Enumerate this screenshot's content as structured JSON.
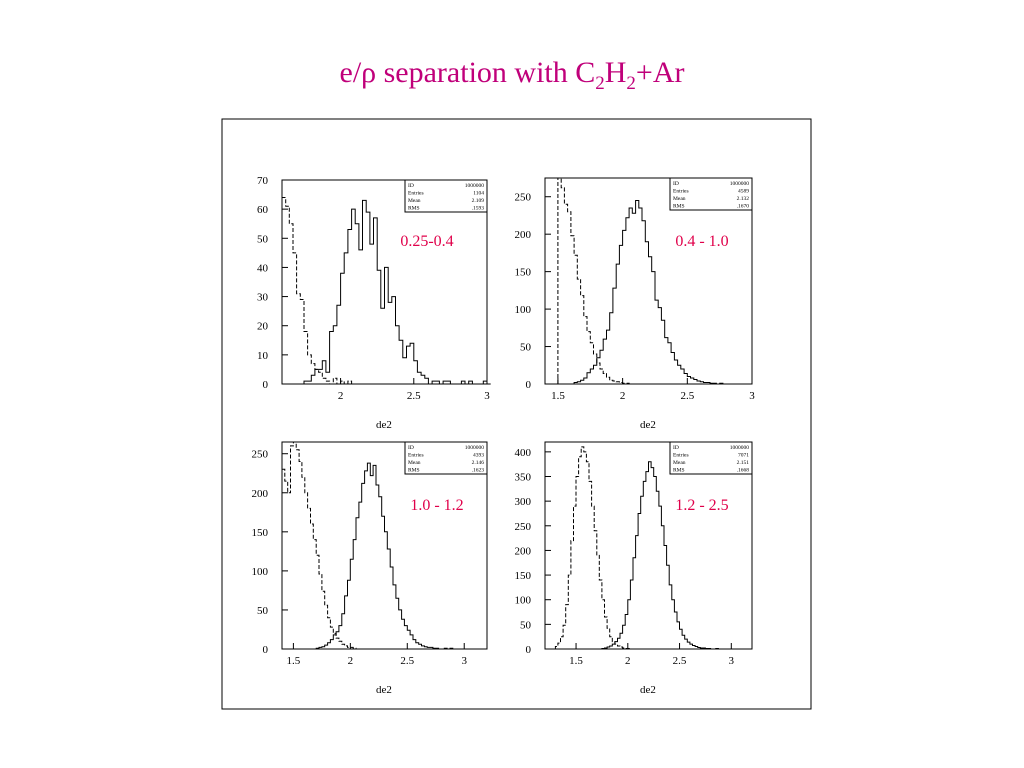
{
  "title": {
    "prefix": "e/ρ separation with C",
    "sub1": "2",
    "mid": "H",
    "sub2": "2",
    "suffix": "+Ar"
  },
  "colors": {
    "title": "#c0007a",
    "range_label": "#e0004a",
    "axes": "#000000"
  },
  "chart_data": [
    {
      "type": "histogram",
      "range_label": "0.25-0.4",
      "xlabel": "de2",
      "xlim": [
        1.6,
        3.0
      ],
      "ylim": [
        0,
        70
      ],
      "xticks": [
        2,
        2.5,
        3
      ],
      "xtick_labels": [
        "2",
        "2.5",
        "3"
      ],
      "yticks": [
        0,
        10,
        20,
        30,
        40,
        50,
        60,
        70
      ],
      "stats": [
        [
          "ID",
          "1000000"
        ],
        [
          "Entries",
          "1104"
        ],
        [
          "Mean",
          "2.109"
        ],
        [
          "RMS",
          ".1593"
        ]
      ],
      "binwidth": 0.025,
      "series": [
        {
          "style": "solid",
          "x0": 1.625,
          "values": [
            0,
            0,
            0,
            0,
            0,
            1,
            1,
            3,
            5,
            5,
            8,
            4,
            18,
            20,
            27,
            38,
            45,
            53,
            60,
            55,
            46,
            63,
            59,
            48,
            57,
            39,
            26,
            40,
            28,
            30,
            20,
            15,
            9,
            13,
            14,
            8,
            4,
            3,
            2,
            0,
            1,
            1,
            0,
            1,
            1,
            0,
            0,
            0,
            1,
            0,
            1,
            0,
            0,
            0,
            1,
            0
          ]
        },
        {
          "style": "dashed",
          "x0": 1.6,
          "values": [
            64,
            61,
            55,
            45,
            31,
            29,
            18,
            10,
            7,
            5,
            4,
            2,
            1,
            0,
            2,
            0,
            1,
            0,
            1,
            0,
            0,
            0,
            0,
            0,
            0,
            0
          ]
        }
      ]
    },
    {
      "type": "histogram",
      "range_label": "0.4 - 1.0",
      "xlabel": "de2",
      "xlim": [
        1.4,
        3.0
      ],
      "ylim": [
        0,
        275
      ],
      "xticks": [
        1.5,
        2,
        2.5,
        3
      ],
      "xtick_labels": [
        "1.5",
        "2",
        "2.5",
        "3"
      ],
      "yticks": [
        0,
        50,
        100,
        150,
        200,
        250
      ],
      "stats": [
        [
          "ID",
          "1000000"
        ],
        [
          "Entries",
          "4589"
        ],
        [
          "Mean",
          "2.132"
        ],
        [
          "RMS",
          ".1670"
        ]
      ],
      "binwidth": 0.025,
      "series": [
        {
          "style": "solid",
          "x0": 1.6,
          "values": [
            0,
            2,
            3,
            5,
            8,
            15,
            20,
            25,
            35,
            45,
            60,
            72,
            95,
            128,
            160,
            185,
            205,
            222,
            235,
            228,
            245,
            235,
            218,
            190,
            170,
            150,
            112,
            102,
            85,
            62,
            55,
            42,
            32,
            25,
            20,
            14,
            10,
            8,
            6,
            4,
            3,
            2,
            2,
            1,
            1,
            0,
            1,
            0,
            0,
            0
          ]
        },
        {
          "style": "dashed",
          "x0": 1.5,
          "values": [
            275,
            262,
            240,
            230,
            198,
            172,
            140,
            118,
            90,
            70,
            55,
            40,
            28,
            20,
            14,
            9,
            5,
            4,
            3,
            2,
            1,
            1,
            0,
            0,
            0
          ]
        }
      ]
    },
    {
      "type": "histogram",
      "range_label": "1.0 - 1.2",
      "xlabel": "de2",
      "xlim": [
        1.4,
        3.2
      ],
      "ylim": [
        0,
        265
      ],
      "xticks": [
        1.5,
        2,
        2.5,
        3
      ],
      "xtick_labels": [
        "1.5",
        "2",
        "2.5",
        "3"
      ],
      "yticks": [
        0,
        50,
        100,
        150,
        200,
        250
      ],
      "stats": [
        [
          "ID",
          "1000000"
        ],
        [
          "Entries",
          "4393"
        ],
        [
          "Mean",
          "2.146"
        ],
        [
          "RMS",
          ".1623"
        ]
      ],
      "binwidth": 0.025,
      "series": [
        {
          "style": "solid",
          "x0": 1.7,
          "values": [
            1,
            2,
            3,
            5,
            8,
            12,
            18,
            22,
            30,
            45,
            68,
            88,
            115,
            140,
            168,
            188,
            212,
            228,
            238,
            222,
            235,
            210,
            195,
            170,
            150,
            128,
            105,
            82,
            65,
            50,
            38,
            30,
            24,
            18,
            12,
            8,
            6,
            4,
            3,
            2,
            2,
            1,
            1,
            0,
            0,
            1,
            0,
            1,
            0,
            0
          ]
        },
        {
          "style": "dashed",
          "x0": 1.4,
          "values": [
            230,
            215,
            200,
            260,
            265,
            255,
            240,
            220,
            200,
            180,
            160,
            140,
            120,
            96,
            74,
            56,
            40,
            28,
            20,
            14,
            10,
            6,
            4,
            2,
            2,
            1,
            0,
            0,
            0,
            0
          ]
        }
      ]
    },
    {
      "type": "histogram",
      "range_label": "1.2 - 2.5",
      "xlabel": "de2",
      "xlim": [
        1.2,
        3.2
      ],
      "ylim": [
        0,
        420
      ],
      "xticks": [
        1.5,
        2,
        2.5,
        3
      ],
      "xtick_labels": [
        "1.5",
        "2",
        "2.5",
        "3"
      ],
      "yticks": [
        0,
        50,
        100,
        150,
        200,
        250,
        300,
        350,
        400
      ],
      "stats": [
        [
          "ID",
          "1000000"
        ],
        [
          "Entries",
          "7071"
        ],
        [
          "Mean",
          "2.151"
        ],
        [
          "RMS",
          ".1668"
        ]
      ],
      "binwidth": 0.025,
      "series": [
        {
          "style": "solid",
          "x0": 1.75,
          "values": [
            1,
            2,
            4,
            6,
            10,
            15,
            22,
            32,
            48,
            70,
            100,
            140,
            185,
            230,
            275,
            310,
            340,
            360,
            380,
            368,
            350,
            320,
            290,
            250,
            210,
            170,
            130,
            100,
            75,
            55,
            40,
            28,
            20,
            14,
            10,
            7,
            5,
            3,
            2,
            2,
            1,
            1,
            0,
            0,
            1,
            0
          ]
        },
        {
          "style": "dashed",
          "x0": 1.3,
          "values": [
            5,
            12,
            25,
            48,
            90,
            150,
            220,
            290,
            350,
            390,
            410,
            400,
            380,
            340,
            290,
            240,
            190,
            140,
            100,
            65,
            42,
            25,
            15,
            10,
            6,
            4,
            2,
            1,
            1,
            0,
            0
          ]
        }
      ]
    }
  ]
}
